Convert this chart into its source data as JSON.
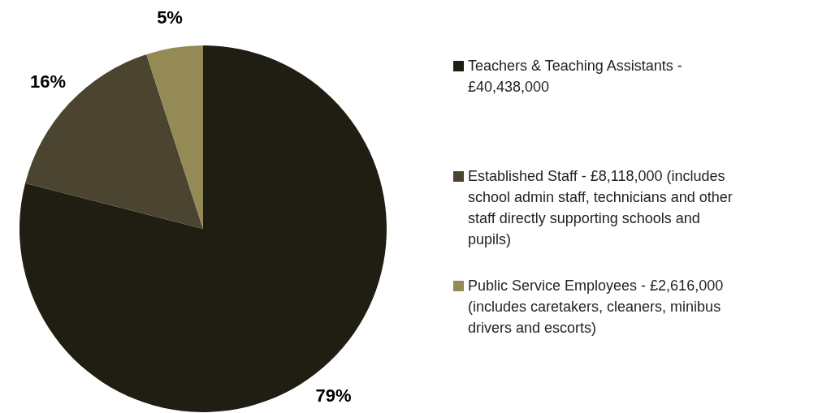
{
  "chart_data": {
    "type": "pie",
    "categories": [
      "Teachers & Teaching Assistants - £40,438,000",
      "Established Staff - £8,118,000 (includes school admin staff, technicians and other staff directly supporting schools and pupils)",
      "Public Service Employees - £2,616,000 (includes caretakers, cleaners, minibus drivers and escorts)"
    ],
    "values": [
      79,
      16,
      5
    ],
    "colors": [
      "#201d12",
      "#4a4430",
      "#938a55"
    ],
    "value_labels": [
      "79%",
      "16%",
      "5%"
    ],
    "legend": "right"
  }
}
